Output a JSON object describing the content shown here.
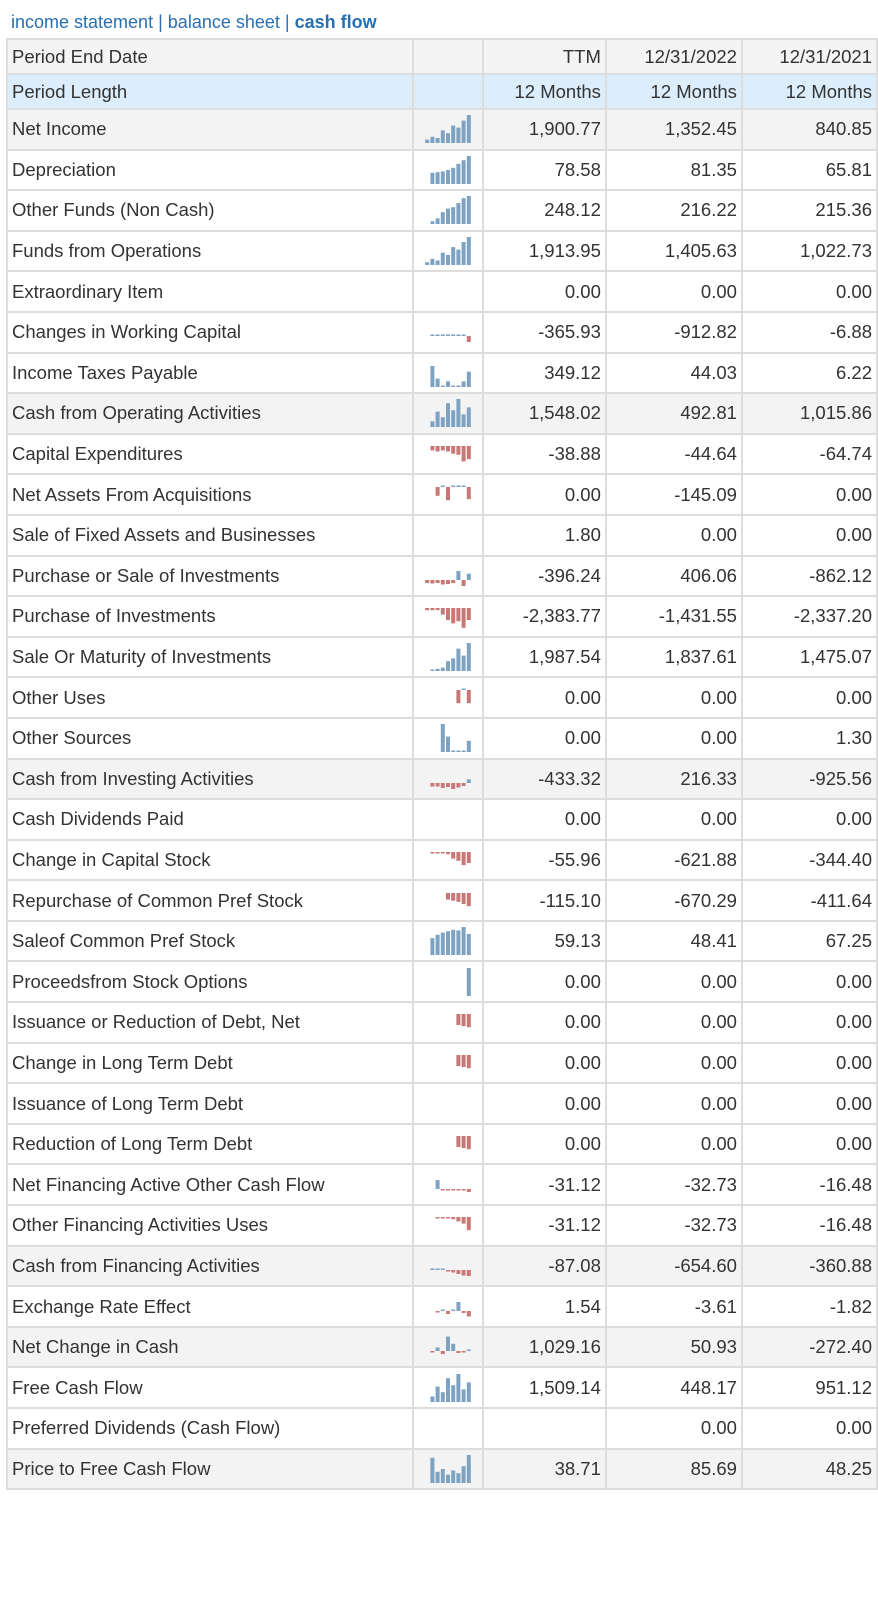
{
  "tabs": {
    "income_statement": "income statement",
    "balance_sheet": "balance sheet",
    "cash_flow": "cash flow",
    "separator": "|"
  },
  "colors": {
    "link": "#2a6fb0",
    "positive_bar": "#7da2c2",
    "negative_bar": "#c97878",
    "header_bg": "#f4f4f4",
    "length_bg": "#dcedfb",
    "total_bg": "#f3f3f3",
    "border": "#dddddd"
  },
  "header": {
    "label": "Period End Date",
    "columns": [
      "TTM",
      "12/31/2022",
      "12/31/2021"
    ]
  },
  "period_length": {
    "label": "Period Length",
    "values": [
      "12 Months",
      "12 Months",
      "12 Months"
    ]
  },
  "rows": [
    {
      "label": "Net Income",
      "values": [
        "1,900.77",
        "1,352.45",
        "840.85"
      ],
      "total": true
    },
    {
      "label": "Depreciation",
      "values": [
        "78.58",
        "81.35",
        "65.81"
      ]
    },
    {
      "label": "Other Funds (Non Cash)",
      "values": [
        "248.12",
        "216.22",
        "215.36"
      ]
    },
    {
      "label": "Funds from Operations",
      "values": [
        "1,913.95",
        "1,405.63",
        "1,022.73"
      ]
    },
    {
      "label": "Extraordinary Item",
      "values": [
        "0.00",
        "0.00",
        "0.00"
      ]
    },
    {
      "label": "Changes in Working Capital",
      "values": [
        "-365.93",
        "-912.82",
        "-6.88"
      ]
    },
    {
      "label": "Income Taxes Payable",
      "values": [
        "349.12",
        "44.03",
        "6.22"
      ]
    },
    {
      "label": "Cash from Operating Activities",
      "values": [
        "1,548.02",
        "492.81",
        "1,015.86"
      ],
      "total": true
    },
    {
      "label": "Capital Expenditures",
      "values": [
        "-38.88",
        "-44.64",
        "-64.74"
      ]
    },
    {
      "label": "Net Assets From Acquisitions",
      "values": [
        "0.00",
        "-145.09",
        "0.00"
      ]
    },
    {
      "label": "Sale of Fixed Assets and Businesses",
      "values": [
        "1.80",
        "0.00",
        "0.00"
      ]
    },
    {
      "label": "Purchase or Sale of Investments",
      "values": [
        "-396.24",
        "406.06",
        "-862.12"
      ]
    },
    {
      "label": "Purchase of Investments",
      "values": [
        "-2,383.77",
        "-1,431.55",
        "-2,337.20"
      ]
    },
    {
      "label": "Sale Or Maturity of Investments",
      "values": [
        "1,987.54",
        "1,837.61",
        "1,475.07"
      ]
    },
    {
      "label": "Other Uses",
      "values": [
        "0.00",
        "0.00",
        "0.00"
      ]
    },
    {
      "label": "Other Sources",
      "values": [
        "0.00",
        "0.00",
        "1.30"
      ]
    },
    {
      "label": "Cash from Investing Activities",
      "values": [
        "-433.32",
        "216.33",
        "-925.56"
      ],
      "total": true
    },
    {
      "label": "Cash Dividends Paid",
      "values": [
        "0.00",
        "0.00",
        "0.00"
      ]
    },
    {
      "label": "Change in Capital Stock",
      "values": [
        "-55.96",
        "-621.88",
        "-344.40"
      ]
    },
    {
      "label": "Repurchase of Common Pref Stock",
      "values": [
        "-115.10",
        "-670.29",
        "-411.64"
      ]
    },
    {
      "label": "Saleof Common Pref Stock",
      "values": [
        "59.13",
        "48.41",
        "67.25"
      ]
    },
    {
      "label": "Proceedsfrom Stock Options",
      "values": [
        "0.00",
        "0.00",
        "0.00"
      ]
    },
    {
      "label": "Issuance or Reduction of Debt, Net",
      "values": [
        "0.00",
        "0.00",
        "0.00"
      ]
    },
    {
      "label": "Change in Long Term Debt",
      "values": [
        "0.00",
        "0.00",
        "0.00"
      ]
    },
    {
      "label": "Issuance of Long Term Debt",
      "values": [
        "0.00",
        "0.00",
        "0.00"
      ]
    },
    {
      "label": "Reduction of Long Term Debt",
      "values": [
        "0.00",
        "0.00",
        "0.00"
      ]
    },
    {
      "label": "Net Financing Active Other Cash Flow",
      "values": [
        "-31.12",
        "-32.73",
        "-16.48"
      ]
    },
    {
      "label": "Other Financing Activities Uses",
      "values": [
        "-31.12",
        "-32.73",
        "-16.48"
      ]
    },
    {
      "label": "Cash from Financing Activities",
      "values": [
        "-87.08",
        "-654.60",
        "-360.88"
      ],
      "total": true
    },
    {
      "label": "Exchange Rate Effect",
      "values": [
        "1.54",
        "-3.61",
        "-1.82"
      ]
    },
    {
      "label": "Net Change in Cash",
      "values": [
        "1,029.16",
        "50.93",
        "-272.40"
      ],
      "total": true
    },
    {
      "label": "Free Cash Flow",
      "values": [
        "1,509.14",
        "448.17",
        "951.12"
      ]
    },
    {
      "label": "Preferred Dividends (Cash Flow)",
      "values": [
        "",
        "0.00",
        "0.00"
      ]
    },
    {
      "label": "Price to Free Cash Flow",
      "values": [
        "38.71",
        "85.69",
        "48.25"
      ],
      "total": true
    }
  ],
  "sparklines": [
    [
      0.12,
      0.22,
      0.18,
      0.45,
      0.35,
      0.62,
      0.55,
      0.8,
      1.0
    ],
    [
      0.4,
      0.42,
      0.45,
      0.5,
      0.58,
      0.72,
      0.85,
      1.0
    ],
    [
      0.1,
      0.2,
      0.42,
      0.55,
      0.6,
      0.75,
      0.92,
      1.0
    ],
    [
      0.1,
      0.22,
      0.16,
      0.44,
      0.36,
      0.64,
      0.55,
      0.82,
      1.0
    ],
    [],
    [
      0.04,
      0.04,
      0.04,
      0.04,
      0.04,
      0.04,
      0.04,
      -0.6
    ],
    [
      0.75,
      0.3,
      0.05,
      0.2,
      0.05,
      0.05,
      0.2,
      0.55
    ],
    [
      0.2,
      0.55,
      0.35,
      0.85,
      0.6,
      1.0,
      0.45,
      0.7
    ],
    [
      -0.2,
      -0.25,
      -0.2,
      -0.25,
      -0.35,
      -0.4,
      -0.7,
      -0.6
    ],
    [
      -0.4,
      0,
      -0.6,
      0,
      0,
      0,
      -0.55
    ],
    [],
    [
      -0.3,
      -0.35,
      -0.3,
      -0.45,
      -0.4,
      -0.3,
      0.5,
      -0.6,
      0.35
    ],
    [
      -0.1,
      -0.1,
      -0.1,
      -0.3,
      -0.55,
      -0.7,
      -0.6,
      -0.9,
      -0.55
    ],
    [
      0.05,
      0.08,
      0.12,
      0.35,
      0.45,
      0.8,
      0.55,
      1.0
    ],
    [
      -0.6,
      0,
      -0.6
    ],
    [
      1.0,
      0.55,
      0,
      0,
      0,
      0.4
    ],
    [
      -0.35,
      -0.35,
      -0.5,
      -0.4,
      -0.6,
      -0.45,
      -0.3,
      0.2
    ],
    [],
    [
      -0.04,
      -0.04,
      -0.04,
      -0.1,
      -0.3,
      -0.4,
      -0.6,
      -0.5
    ],
    [
      -0.3,
      -0.35,
      -0.4,
      -0.5,
      -0.6
    ],
    [
      0.6,
      0.72,
      0.8,
      0.85,
      0.9,
      0.88,
      1.0,
      0.75
    ],
    [
      1.0
    ],
    [
      -0.5,
      -0.55,
      -0.6
    ],
    [
      -0.5,
      -0.55,
      -0.6
    ],
    [],
    [
      -0.5,
      -0.55,
      -0.6
    ],
    [
      0.5,
      -0.08,
      -0.08,
      -0.08,
      -0.08,
      -0.08,
      -0.3
    ],
    [
      -0.05,
      -0.05,
      -0.05,
      -0.1,
      -0.2,
      -0.3,
      -0.6
    ],
    [
      0.05,
      0.05,
      0.05,
      -0.1,
      -0.25,
      -0.4,
      -0.55,
      -0.6
    ],
    [
      -0.05,
      0.05,
      -0.3,
      0.05,
      0.5,
      -0.2,
      -0.55
    ],
    [
      -0.1,
      0.2,
      -0.3,
      0.8,
      0.4,
      -0.2,
      -0.1,
      0.05
    ],
    [
      0.2,
      0.55,
      0.35,
      0.85,
      0.6,
      1.0,
      0.45,
      0.7
    ],
    [],
    [
      0.9,
      0.4,
      0.5,
      0.3,
      0.45,
      0.35,
      0.6,
      1.0
    ]
  ]
}
